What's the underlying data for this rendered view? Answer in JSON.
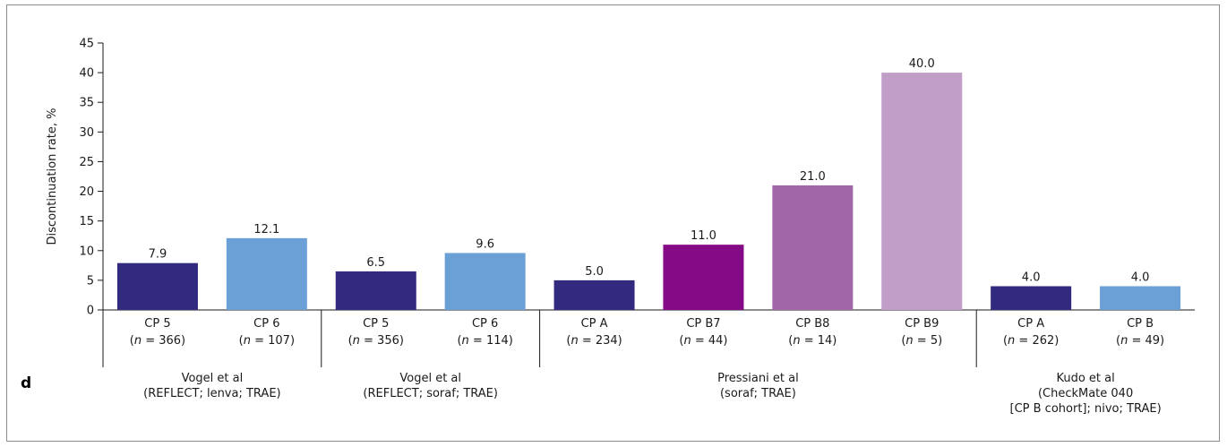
{
  "chart_data": {
    "type": "bar",
    "ylabel": "Discontinuation rate, %",
    "ylim": [
      0,
      45
    ],
    "yticks": [
      0,
      5,
      10,
      15,
      20,
      25,
      30,
      35,
      40,
      45
    ],
    "panel_label": "d",
    "grid": false,
    "groups": [
      {
        "label_lines": [
          "Vogel et al",
          "(REFLECT; lenva; TRAE)"
        ],
        "bar_count": 2
      },
      {
        "label_lines": [
          "Vogel et al",
          "(REFLECT; soraf; TRAE)"
        ],
        "bar_count": 2
      },
      {
        "label_lines": [
          "Pressiani et al",
          "(soraf; TRAE)"
        ],
        "bar_count": 4
      },
      {
        "label_lines": [
          "Kudo et al",
          "(CheckMate 040",
          "[CP B cohort]; nivo; TRAE)"
        ],
        "bar_count": 2
      }
    ],
    "bars": [
      {
        "category": "CP 5",
        "n": "366",
        "value": 7.9,
        "label": "7.9",
        "color": "#322a7f"
      },
      {
        "category": "CP 6",
        "n": "107",
        "value": 12.1,
        "label": "12.1",
        "color": "#6ba0d6"
      },
      {
        "category": "CP 5",
        "n": "356",
        "value": 6.5,
        "label": "6.5",
        "color": "#322a7f"
      },
      {
        "category": "CP 6",
        "n": "114",
        "value": 9.6,
        "label": "9.6",
        "color": "#6ba0d6"
      },
      {
        "category": "CP A",
        "n": "234",
        "value": 5.0,
        "label": "5.0",
        "color": "#322a7f"
      },
      {
        "category": "CP B7",
        "n": "44",
        "value": 11.0,
        "label": "11.0",
        "color": "#850a85"
      },
      {
        "category": "CP B8",
        "n": "14",
        "value": 21.0,
        "label": "21.0",
        "color": "#a166a8"
      },
      {
        "category": "CP B9",
        "n": "5",
        "value": 40.0,
        "label": "40.0",
        "color": "#c19ec8"
      },
      {
        "category": "CP A",
        "n": "262",
        "value": 4.0,
        "label": "4.0",
        "color": "#322a7f"
      },
      {
        "category": "CP B",
        "n": "49",
        "value": 4.0,
        "label": "4.0",
        "color": "#6ba0d6"
      }
    ]
  }
}
